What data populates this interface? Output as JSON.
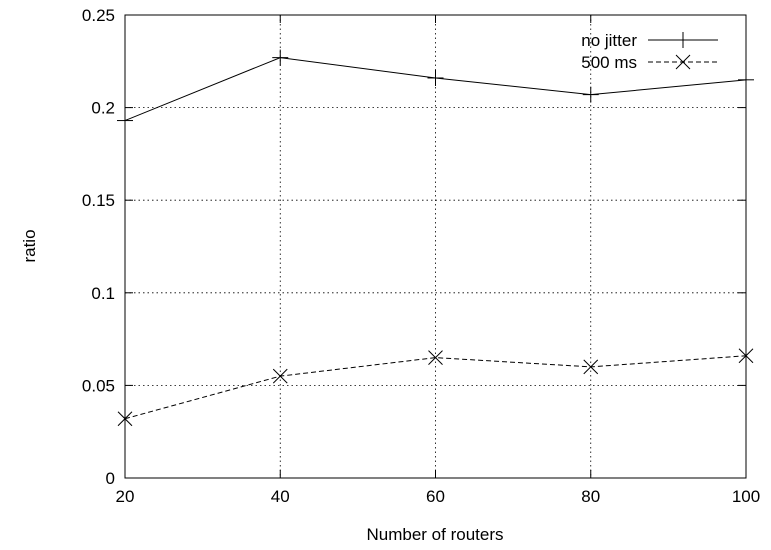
{
  "chart_data": {
    "type": "line",
    "xlabel": "Number of routers",
    "ylabel": "ratio",
    "xlim": [
      20,
      100
    ],
    "ylim": [
      0,
      0.25
    ],
    "xticks": [
      "20",
      "40",
      "60",
      "80",
      "100"
    ],
    "yticks": [
      "0",
      "0.05",
      "0.1",
      "0.15",
      "0.2",
      "0.25"
    ],
    "grid": true,
    "legend": "top-right",
    "x": [
      20,
      40,
      60,
      80,
      100
    ],
    "series": [
      {
        "name": "no jitter",
        "values": [
          0.193,
          0.227,
          0.216,
          0.207,
          0.215
        ],
        "marker": "plus",
        "line": "solid"
      },
      {
        "name": "500 ms",
        "values": [
          0.032,
          0.055,
          0.065,
          0.06,
          0.066
        ],
        "marker": "cross",
        "line": "dashed"
      }
    ]
  }
}
